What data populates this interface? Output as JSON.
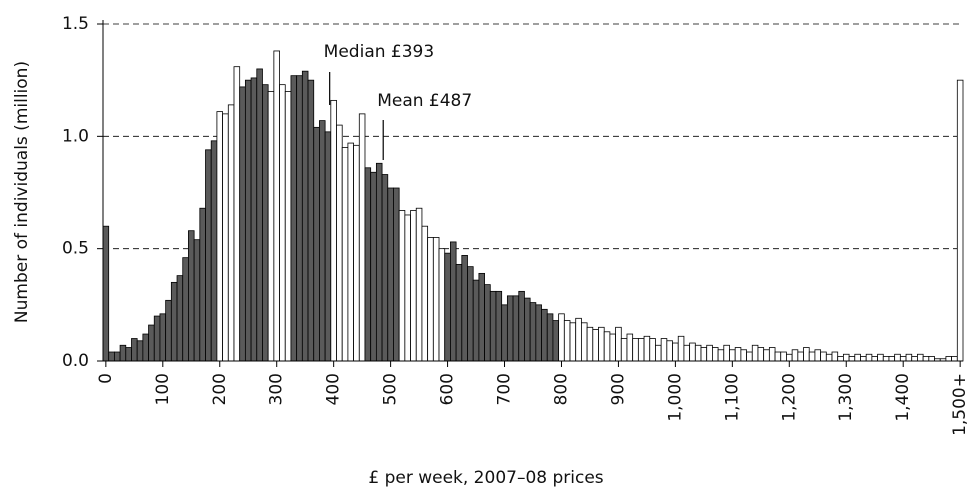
{
  "chart_data": {
    "type": "bar",
    "y_label": "Number of individuals (million)",
    "x_label": "£ per week, 2007–08 prices",
    "annotations": [
      {
        "text": "Median £393",
        "x": 393
      },
      {
        "text": "Mean £487",
        "x": 487
      }
    ],
    "x": [
      0,
      10,
      20,
      30,
      40,
      50,
      60,
      70,
      80,
      90,
      100,
      110,
      120,
      130,
      140,
      150,
      160,
      170,
      180,
      190,
      200,
      210,
      220,
      230,
      240,
      250,
      260,
      270,
      280,
      290,
      300,
      310,
      320,
      330,
      340,
      350,
      360,
      370,
      380,
      390,
      400,
      410,
      420,
      430,
      440,
      450,
      460,
      470,
      480,
      490,
      500,
      510,
      520,
      530,
      540,
      550,
      560,
      570,
      580,
      590,
      600,
      610,
      620,
      630,
      640,
      650,
      660,
      670,
      680,
      690,
      700,
      710,
      720,
      730,
      740,
      750,
      760,
      770,
      780,
      790,
      800,
      810,
      820,
      830,
      840,
      850,
      860,
      870,
      880,
      890,
      900,
      910,
      920,
      930,
      940,
      950,
      960,
      970,
      980,
      990,
      1000,
      1010,
      1020,
      1030,
      1040,
      1050,
      1060,
      1070,
      1080,
      1090,
      1100,
      1110,
      1120,
      1130,
      1140,
      1150,
      1160,
      1170,
      1180,
      1190,
      1200,
      1210,
      1220,
      1230,
      1240,
      1250,
      1260,
      1270,
      1280,
      1290,
      1300,
      1310,
      1320,
      1330,
      1340,
      1350,
      1360,
      1370,
      1380,
      1390,
      1400,
      1410,
      1420,
      1430,
      1440,
      1450,
      1460,
      1470,
      1480,
      1490,
      1500
    ],
    "values": [
      0.6,
      0.04,
      0.04,
      0.07,
      0.06,
      0.1,
      0.09,
      0.12,
      0.16,
      0.2,
      0.21,
      0.27,
      0.35,
      0.38,
      0.46,
      0.58,
      0.54,
      0.68,
      0.94,
      0.98,
      1.11,
      1.1,
      1.14,
      1.31,
      1.22,
      1.25,
      1.26,
      1.3,
      1.23,
      1.2,
      1.38,
      1.23,
      1.2,
      1.27,
      1.27,
      1.29,
      1.25,
      1.04,
      1.07,
      1.02,
      1.16,
      1.05,
      0.95,
      0.97,
      0.96,
      1.1,
      0.86,
      0.84,
      0.88,
      0.83,
      0.77,
      0.77,
      0.67,
      0.65,
      0.67,
      0.68,
      0.6,
      0.55,
      0.55,
      0.5,
      0.48,
      0.53,
      0.43,
      0.47,
      0.42,
      0.36,
      0.39,
      0.34,
      0.31,
      0.31,
      0.25,
      0.29,
      0.29,
      0.31,
      0.28,
      0.26,
      0.25,
      0.23,
      0.21,
      0.18,
      0.21,
      0.18,
      0.17,
      0.19,
      0.17,
      0.15,
      0.14,
      0.15,
      0.13,
      0.12,
      0.15,
      0.1,
      0.12,
      0.1,
      0.1,
      0.11,
      0.1,
      0.07,
      0.1,
      0.09,
      0.08,
      0.11,
      0.07,
      0.08,
      0.07,
      0.06,
      0.07,
      0.06,
      0.05,
      0.07,
      0.05,
      0.06,
      0.05,
      0.04,
      0.07,
      0.06,
      0.05,
      0.06,
      0.04,
      0.04,
      0.03,
      0.05,
      0.04,
      0.06,
      0.04,
      0.05,
      0.04,
      0.03,
      0.04,
      0.02,
      0.03,
      0.02,
      0.03,
      0.02,
      0.03,
      0.02,
      0.03,
      0.02,
      0.02,
      0.03,
      0.02,
      0.03,
      0.02,
      0.03,
      0.02,
      0.02,
      0.01,
      0.01,
      0.02,
      0.02,
      1.25
    ],
    "colors": [
      "#5a5a5a",
      "#5a5a5a",
      "#5a5a5a",
      "#5a5a5a",
      "#5a5a5a",
      "#5a5a5a",
      "#5a5a5a",
      "#5a5a5a",
      "#5a5a5a",
      "#5a5a5a",
      "#5a5a5a",
      "#5a5a5a",
      "#5a5a5a",
      "#5a5a5a",
      "#5a5a5a",
      "#5a5a5a",
      "#5a5a5a",
      "#5a5a5a",
      "#5a5a5a",
      "#5a5a5a",
      "#ffffff",
      "#ffffff",
      "#ffffff",
      "#ffffff",
      "#5a5a5a",
      "#5a5a5a",
      "#5a5a5a",
      "#5a5a5a",
      "#5a5a5a",
      "#ffffff",
      "#ffffff",
      "#ffffff",
      "#ffffff",
      "#5a5a5a",
      "#5a5a5a",
      "#5a5a5a",
      "#5a5a5a",
      "#5a5a5a",
      "#5a5a5a",
      "#5a5a5a",
      "#ffffff",
      "#ffffff",
      "#ffffff",
      "#ffffff",
      "#ffffff",
      "#ffffff",
      "#5a5a5a",
      "#5a5a5a",
      "#5a5a5a",
      "#5a5a5a",
      "#5a5a5a",
      "#5a5a5a",
      "#ffffff",
      "#ffffff",
      "#ffffff",
      "#ffffff",
      "#ffffff",
      "#ffffff",
      "#ffffff",
      "#ffffff",
      "#5a5a5a",
      "#5a5a5a",
      "#5a5a5a",
      "#5a5a5a",
      "#5a5a5a",
      "#5a5a5a",
      "#5a5a5a",
      "#5a5a5a",
      "#5a5a5a",
      "#5a5a5a",
      "#5a5a5a",
      "#5a5a5a",
      "#5a5a5a",
      "#5a5a5a",
      "#5a5a5a",
      "#5a5a5a",
      "#5a5a5a",
      "#5a5a5a",
      "#5a5a5a",
      "#5a5a5a",
      "#ffffff",
      "#ffffff",
      "#ffffff",
      "#ffffff",
      "#ffffff",
      "#ffffff",
      "#ffffff",
      "#ffffff",
      "#ffffff",
      "#ffffff",
      "#ffffff",
      "#ffffff",
      "#ffffff",
      "#ffffff",
      "#ffffff",
      "#ffffff",
      "#ffffff",
      "#ffffff",
      "#ffffff",
      "#ffffff",
      "#ffffff",
      "#ffffff",
      "#ffffff",
      "#ffffff",
      "#ffffff",
      "#ffffff",
      "#ffffff",
      "#ffffff",
      "#ffffff",
      "#ffffff",
      "#ffffff",
      "#ffffff",
      "#ffffff",
      "#ffffff",
      "#ffffff",
      "#ffffff",
      "#ffffff",
      "#ffffff",
      "#ffffff",
      "#ffffff",
      "#ffffff",
      "#ffffff",
      "#ffffff",
      "#ffffff",
      "#ffffff",
      "#ffffff",
      "#ffffff",
      "#ffffff",
      "#ffffff",
      "#ffffff",
      "#ffffff",
      "#ffffff",
      "#ffffff",
      "#ffffff",
      "#ffffff",
      "#ffffff",
      "#ffffff",
      "#ffffff",
      "#ffffff",
      "#ffffff",
      "#ffffff",
      "#ffffff",
      "#ffffff",
      "#ffffff",
      "#ffffff",
      "#ffffff",
      "#ffffff",
      "#ffffff",
      "#ffffff",
      "#ffffff",
      "#ffffff"
    ],
    "xlim": [
      -5,
      1505
    ],
    "xticks": [
      0,
      100,
      200,
      300,
      400,
      500,
      600,
      700,
      800,
      900,
      {
        "value": 1000,
        "label": "1,000"
      },
      {
        "value": 1100,
        "label": "1,100"
      },
      {
        "value": 1200,
        "label": "1,200"
      },
      {
        "value": 1300,
        "label": "1,300"
      },
      {
        "value": 1400,
        "label": "1,400"
      },
      {
        "value": 1500,
        "label": "1,500+"
      }
    ],
    "ylim": [
      0,
      1.5
    ],
    "yticks": [
      {
        "value": 0,
        "label": "0.0"
      },
      0.5,
      {
        "value": 1,
        "label": "1.0"
      },
      1.5
    ],
    "grid": true
  }
}
